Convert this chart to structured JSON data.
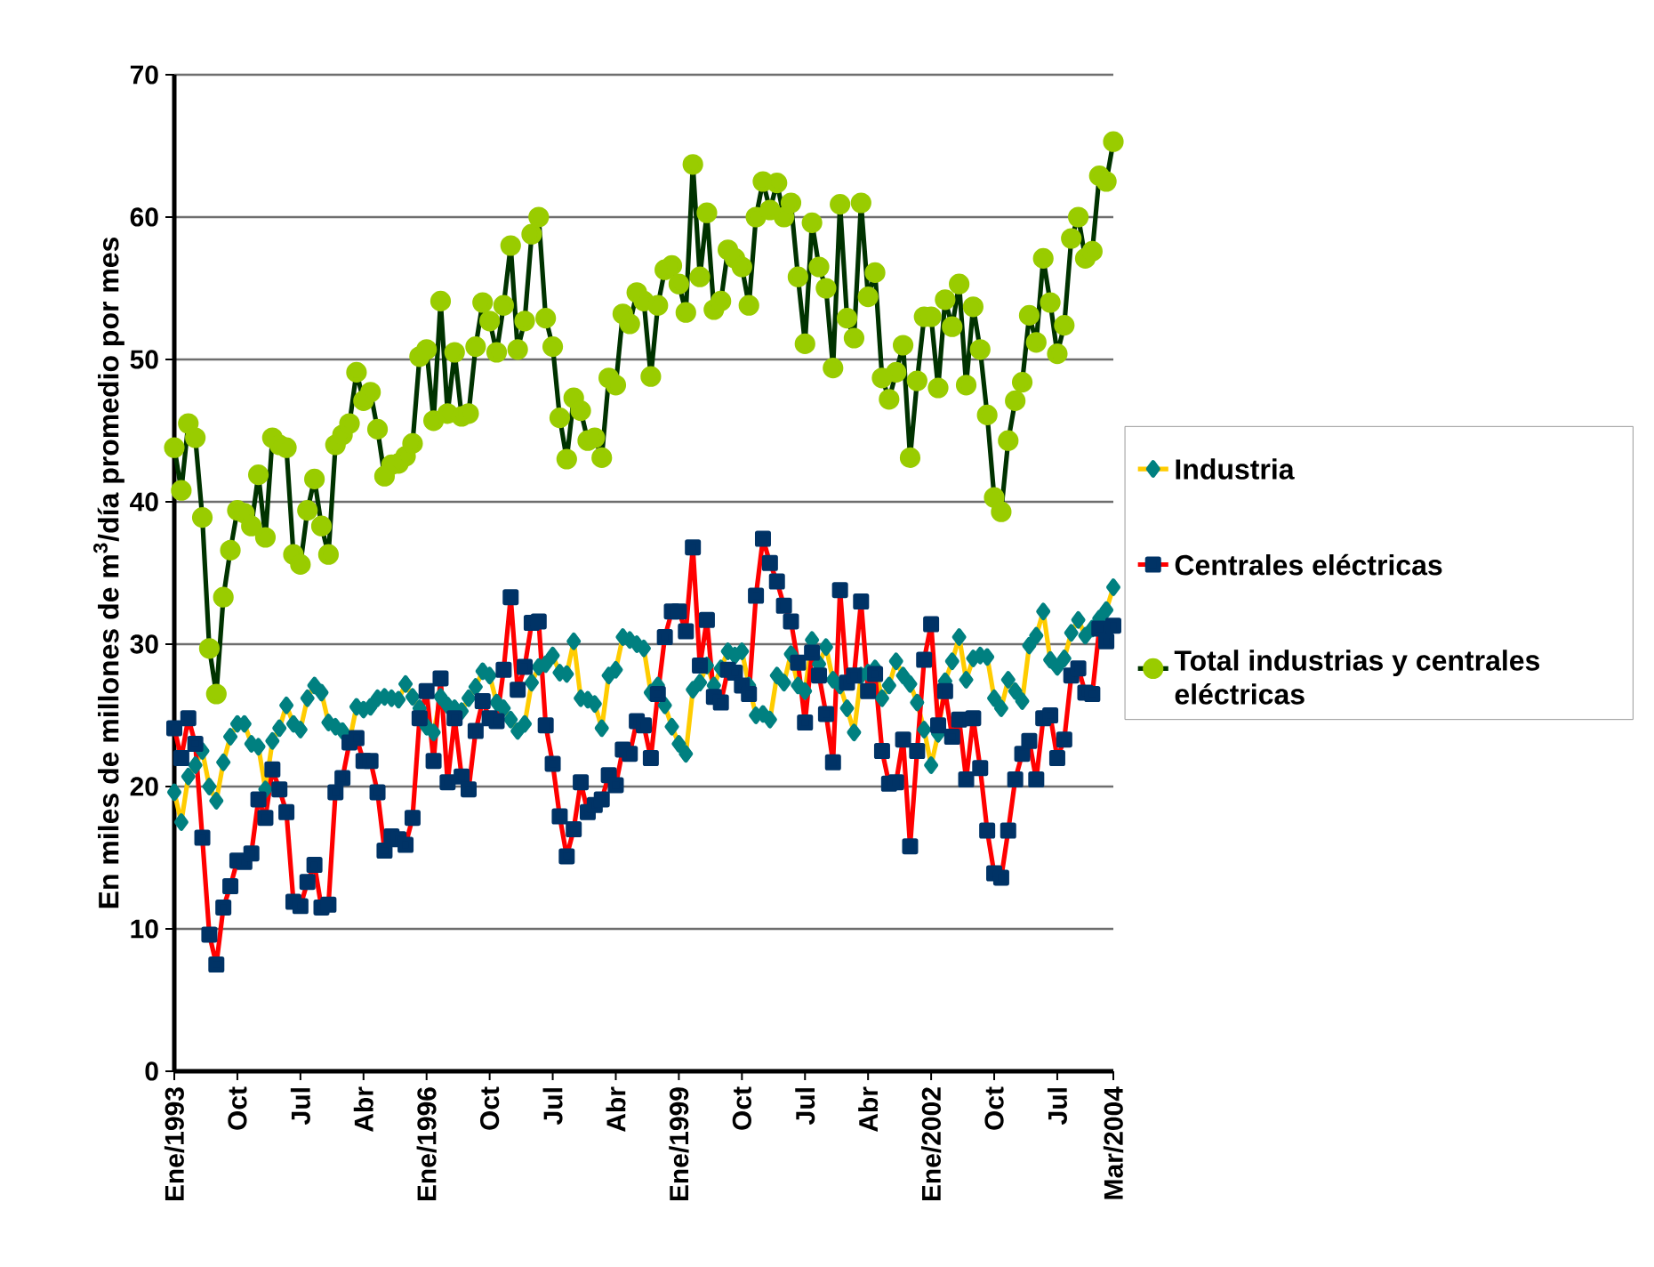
{
  "chart_data": {
    "type": "line",
    "ylabel": "En miles de millones de  m$^{3}$/día promedio por mes",
    "x": [
      "1993-01",
      "1993-02",
      "1993-03",
      "1993-04",
      "1993-05",
      "1993-06",
      "1993-07",
      "1993-08",
      "1993-09",
      "1993-10",
      "1993-11",
      "1993-12",
      "1994-01",
      "1994-02",
      "1994-03",
      "1994-04",
      "1994-05",
      "1994-06",
      "1994-07",
      "1994-08",
      "1994-09",
      "1994-10",
      "1994-11",
      "1994-12",
      "1995-01",
      "1995-02",
      "1995-03",
      "1995-04",
      "1995-05",
      "1995-06",
      "1995-07",
      "1995-08",
      "1995-09",
      "1995-10",
      "1995-11",
      "1995-12",
      "1996-01",
      "1996-02",
      "1996-03",
      "1996-04",
      "1996-05",
      "1996-06",
      "1996-07",
      "1996-08",
      "1996-09",
      "1996-10",
      "1996-11",
      "1996-12",
      "1997-01",
      "1997-02",
      "1997-03",
      "1997-04",
      "1997-05",
      "1997-06",
      "1997-07",
      "1997-08",
      "1997-09",
      "1997-10",
      "1997-11",
      "1997-12",
      "1998-01",
      "1998-02",
      "1998-03",
      "1998-04",
      "1998-05",
      "1998-06",
      "1998-07",
      "1998-08",
      "1998-09",
      "1998-10",
      "1998-11",
      "1998-12",
      "1999-01",
      "1999-02",
      "1999-03",
      "1999-04",
      "1999-05",
      "1999-06",
      "1999-07",
      "1999-08",
      "1999-09",
      "1999-10",
      "1999-11",
      "1999-12",
      "2000-01",
      "2000-02",
      "2000-03",
      "2000-04",
      "2000-05",
      "2000-06",
      "2000-07",
      "2000-08",
      "2000-09",
      "2000-10",
      "2000-11",
      "2000-12",
      "2001-01",
      "2001-02",
      "2001-03",
      "2001-04",
      "2001-05",
      "2001-06",
      "2001-07",
      "2001-08",
      "2001-09",
      "2001-10",
      "2001-11",
      "2001-12",
      "2002-01",
      "2002-02",
      "2002-03",
      "2002-04",
      "2002-05",
      "2002-06",
      "2002-07",
      "2002-08",
      "2002-09",
      "2002-10",
      "2002-11",
      "2002-12",
      "2003-01",
      "2003-02",
      "2003-03",
      "2003-04",
      "2003-05",
      "2003-06",
      "2003-07",
      "2003-08",
      "2003-09",
      "2003-10",
      "2003-11",
      "2003-12",
      "2004-01",
      "2004-02",
      "2004-03"
    ],
    "series": [
      {
        "name": "Industria",
        "color": "#ffcc00",
        "marker": "diamond",
        "values": [
          19.6,
          17.5,
          20.7,
          21.5,
          22.5,
          20.0,
          19.0,
          21.7,
          23.5,
          24.4,
          24.4,
          23.0,
          22.8,
          19.8,
          23.2,
          24.1,
          25.7,
          24.4,
          24.0,
          26.2,
          27.1,
          26.6,
          24.5,
          24.2,
          23.9,
          23.2,
          25.6,
          25.4,
          25.6,
          26.2,
          26.3,
          26.2,
          26.1,
          27.2,
          26.3,
          25.5,
          24.2,
          23.8,
          26.3,
          25.7,
          25.5,
          25.3,
          26.2,
          27.0,
          28.1,
          27.8,
          25.9,
          25.5,
          24.7,
          23.9,
          24.4,
          27.3,
          28.4,
          28.6,
          29.2,
          28.0,
          27.9,
          30.2,
          26.2,
          26.1,
          25.8,
          24.1,
          27.8,
          28.2,
          30.5,
          30.3,
          30.0,
          29.7,
          26.6,
          27.1,
          25.7,
          24.2,
          23.0,
          22.3,
          26.8,
          27.3,
          28.5,
          27.1,
          28.3,
          29.5,
          29.2,
          29.5,
          27.1,
          25.0,
          25.1,
          24.7,
          27.8,
          27.3,
          29.3,
          27.1,
          26.7,
          30.3,
          28.6,
          29.8,
          27.5,
          27.1,
          25.5,
          23.8,
          27.8,
          28.0,
          28.3,
          26.2,
          27.1,
          28.8,
          27.8,
          27.2,
          25.9,
          24.0,
          21.5,
          23.7,
          27.4,
          28.8,
          30.5,
          27.5,
          29.0,
          29.2,
          29.1,
          26.2,
          25.5,
          27.5,
          26.7,
          26.0,
          29.9,
          30.6,
          32.3,
          28.9,
          28.4,
          29.0,
          30.8,
          31.7,
          30.6,
          31.1,
          31.8,
          32.4,
          34.0
        ]
      },
      {
        "name": "Centrales eléctricas",
        "color": "#ff0000",
        "marker": "square",
        "values": [
          24.1,
          22.0,
          24.8,
          23.0,
          16.4,
          9.6,
          7.5,
          11.5,
          13.0,
          14.8,
          14.7,
          15.3,
          19.1,
          17.8,
          21.2,
          19.8,
          18.2,
          11.9,
          11.6,
          13.3,
          14.5,
          11.5,
          11.7,
          19.6,
          20.6,
          23.1,
          23.4,
          21.8,
          21.8,
          19.6,
          15.5,
          16.5,
          16.3,
          15.9,
          17.8,
          24.8,
          26.7,
          21.8,
          27.6,
          20.3,
          24.8,
          20.7,
          19.8,
          23.9,
          26.0,
          24.8,
          24.6,
          28.2,
          33.3,
          26.8,
          28.4,
          31.5,
          31.6,
          24.3,
          21.6,
          17.9,
          15.1,
          17.0,
          20.3,
          18.2,
          18.7,
          19.1,
          20.8,
          20.1,
          22.6,
          22.3,
          24.6,
          24.3,
          22.0,
          26.5,
          30.5,
          32.3,
          32.3,
          30.9,
          36.8,
          28.5,
          31.7,
          26.3,
          25.9,
          28.2,
          28.0,
          27.1,
          26.5,
          33.4,
          37.4,
          35.7,
          34.4,
          32.7,
          31.6,
          28.7,
          24.5,
          29.4,
          27.8,
          25.1,
          21.7,
          33.8,
          27.3,
          27.8,
          33.0,
          26.7,
          27.9,
          22.5,
          20.2,
          20.3,
          23.3,
          15.8,
          22.5,
          28.9,
          31.4,
          24.3,
          26.7,
          23.5,
          24.7,
          20.5,
          24.8,
          21.3,
          16.9,
          13.9,
          13.6,
          16.9,
          20.5,
          22.3,
          23.2,
          20.5,
          24.8,
          25.0,
          22.0,
          23.3,
          27.8,
          28.3,
          26.6,
          26.5,
          31.1,
          30.2,
          31.3
        ]
      },
      {
        "name": "Total industrias y centrales eléctricas",
        "color": "#003300",
        "marker": "circle",
        "values": [
          43.8,
          40.8,
          45.5,
          44.5,
          38.9,
          29.7,
          26.5,
          33.3,
          36.6,
          39.4,
          39.2,
          38.3,
          41.9,
          37.5,
          44.5,
          44.0,
          43.8,
          36.3,
          35.6,
          39.4,
          41.6,
          38.3,
          36.3,
          44.0,
          44.7,
          45.5,
          49.1,
          47.1,
          47.7,
          45.1,
          41.8,
          42.6,
          42.7,
          43.2,
          44.1,
          50.2,
          50.7,
          45.7,
          54.1,
          46.2,
          50.5,
          46.0,
          46.2,
          50.9,
          54.0,
          52.7,
          50.5,
          53.8,
          58.0,
          50.7,
          52.7,
          58.8,
          60.0,
          52.9,
          50.9,
          45.9,
          43.0,
          47.3,
          46.4,
          44.3,
          44.5,
          43.1,
          48.7,
          48.2,
          53.2,
          52.5,
          54.7,
          54.1,
          48.8,
          53.8,
          56.3,
          56.6,
          55.3,
          53.3,
          63.7,
          55.8,
          60.3,
          53.5,
          54.1,
          57.7,
          57.1,
          56.5,
          53.8,
          60.0,
          62.5,
          60.5,
          62.4,
          60.0,
          61.0,
          55.8,
          51.1,
          59.6,
          56.5,
          55.0,
          49.4,
          60.9,
          52.9,
          51.5,
          61.0,
          54.4,
          56.1,
          48.7,
          47.2,
          49.1,
          51.0,
          43.1,
          48.5,
          53.0,
          53.0,
          48.0,
          54.2,
          52.3,
          55.3,
          48.2,
          53.7,
          50.7,
          46.1,
          40.3,
          39.3,
          44.3,
          47.1,
          48.4,
          53.1,
          51.2,
          57.1,
          54.0,
          50.4,
          52.4,
          58.5,
          60.0,
          57.1,
          57.6,
          62.9,
          62.5,
          65.3
        ]
      }
    ],
    "xlim": [
      "1993-01",
      "2004-03"
    ],
    "xticks": [
      {
        "value": "1993-01",
        "label": "Ene/1993"
      },
      {
        "value": "1993-10",
        "label": "Oct"
      },
      {
        "value": "1994-07",
        "label": "Jul"
      },
      {
        "value": "1995-04",
        "label": "Abr"
      },
      {
        "value": "1996-01",
        "label": "Ene/1996"
      },
      {
        "value": "1996-10",
        "label": "Oct"
      },
      {
        "value": "1997-07",
        "label": "Jul"
      },
      {
        "value": "1998-04",
        "label": "Abr"
      },
      {
        "value": "1999-01",
        "label": "Ene/1999"
      },
      {
        "value": "1999-10",
        "label": "Oct"
      },
      {
        "value": "2000-07",
        "label": "Jul"
      },
      {
        "value": "2001-04",
        "label": "Abr"
      },
      {
        "value": "2002-01",
        "label": "Ene/2002"
      },
      {
        "value": "2002-10",
        "label": "Oct"
      },
      {
        "value": "2003-07",
        "label": "Jul"
      },
      {
        "value": "2004-03",
        "label": "Mar/2004"
      }
    ],
    "ylim": [
      0,
      70
    ],
    "yticks": [
      0,
      10,
      20,
      30,
      40,
      50,
      60,
      70
    ],
    "grid": "y",
    "legend": "right",
    "line_style": "solid"
  }
}
